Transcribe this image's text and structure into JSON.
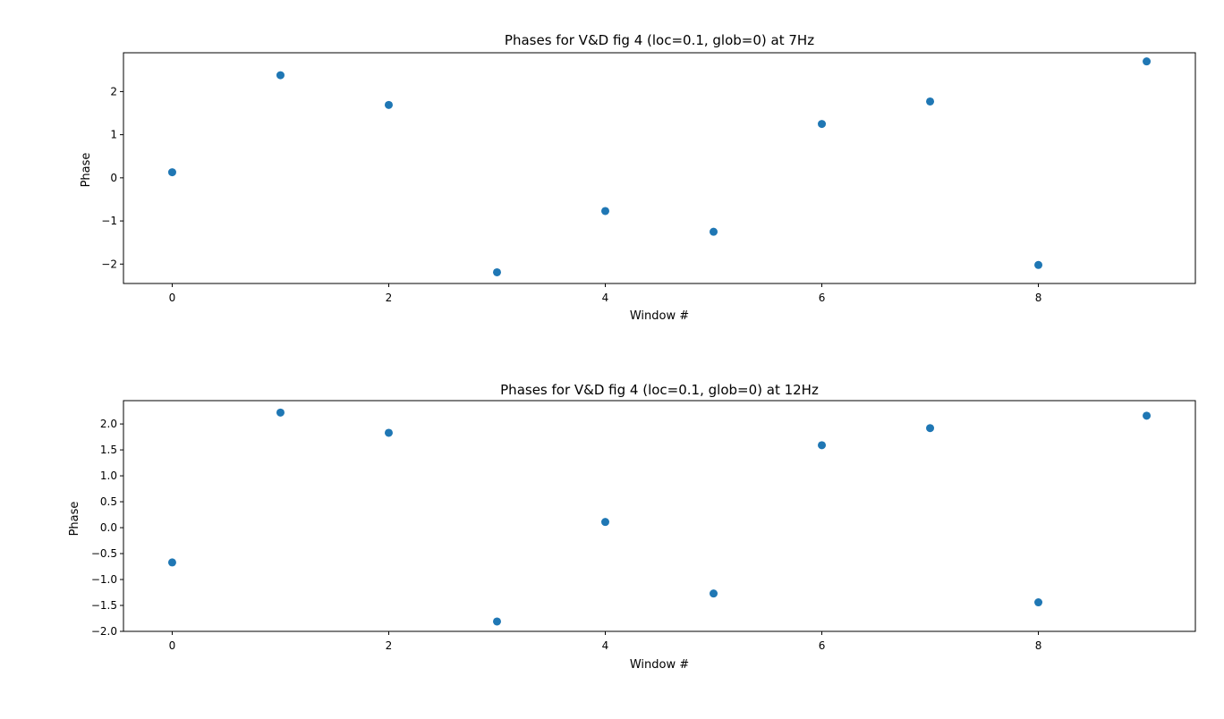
{
  "chart_data": [
    {
      "type": "scatter",
      "title": "Phases for V&D fig 4 (loc=0.1, glob=0) at 7Hz",
      "xlabel": "Window #",
      "ylabel": "Phase",
      "xlim": [
        -0.45,
        9.45
      ],
      "ylim": [
        -2.45,
        2.9
      ],
      "xticks": [
        0,
        2,
        4,
        6,
        8
      ],
      "yticks": [
        -2,
        -1,
        0,
        1,
        2
      ],
      "ytick_labels": [
        "−2",
        "−1",
        "0",
        "1",
        "2"
      ],
      "marker_color": "#1f77b4",
      "grid": false,
      "series": [
        {
          "x": [
            0,
            1,
            2,
            3,
            4,
            5,
            6,
            7,
            8,
            9
          ],
          "y": [
            0.13,
            2.38,
            1.69,
            -2.19,
            -0.77,
            -1.25,
            1.25,
            1.77,
            -2.02,
            2.7
          ]
        }
      ]
    },
    {
      "type": "scatter",
      "title": "Phases for V&D fig 4 (loc=0.1, glob=0) at 12Hz",
      "xlabel": "Window #",
      "ylabel": "Phase",
      "xlim": [
        -0.45,
        9.45
      ],
      "ylim": [
        -2.0,
        2.45
      ],
      "xticks": [
        0,
        2,
        4,
        6,
        8
      ],
      "yticks": [
        -2.0,
        -1.5,
        -1.0,
        -0.5,
        0.0,
        0.5,
        1.0,
        1.5,
        2.0
      ],
      "ytick_labels": [
        "−2.0",
        "−1.5",
        "−1.0",
        "−0.5",
        "0.0",
        "0.5",
        "1.0",
        "1.5",
        "2.0"
      ],
      "marker_color": "#1f77b4",
      "grid": false,
      "series": [
        {
          "x": [
            0,
            1,
            2,
            3,
            4,
            5,
            6,
            7,
            8,
            9
          ],
          "y": [
            -0.67,
            2.22,
            1.83,
            -1.81,
            0.11,
            -1.27,
            1.59,
            1.92,
            -1.44,
            2.16
          ]
        }
      ]
    }
  ]
}
